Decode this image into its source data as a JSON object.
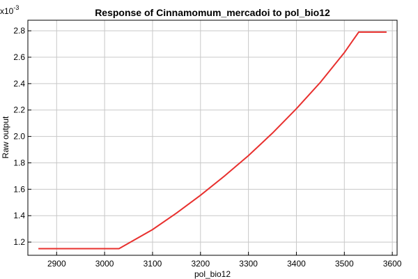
{
  "chart_data": {
    "type": "line",
    "title": "Response of Cinnamomum_mercadoi to pol_bio12",
    "xlabel": "pol_bio12",
    "ylabel": "Raw output",
    "y_multiplier_label": "x10",
    "y_multiplier_exponent": "-3",
    "xlim": [
      2840,
      3610
    ],
    "ylim": [
      1.1,
      2.88
    ],
    "x_ticks": [
      2900,
      3000,
      3100,
      3200,
      3300,
      3400,
      3500,
      3600
    ],
    "y_ticks": [
      1.2,
      1.4,
      1.6,
      1.8,
      2.0,
      2.2,
      2.4,
      2.6,
      2.8
    ],
    "y_tick_labels": [
      "1.2",
      "1.4",
      "1.6",
      "1.8",
      "2.0",
      "2.2",
      "2.4",
      "2.6",
      "2.8"
    ],
    "grid": true,
    "line_color": "#e8302e",
    "series": [
      {
        "x": [
          2862,
          3030,
          3100,
          3150,
          3200,
          3250,
          3300,
          3350,
          3400,
          3450,
          3500,
          3530,
          3588
        ],
        "values": [
          1.15,
          1.15,
          1.295,
          1.42,
          1.555,
          1.7,
          1.855,
          2.025,
          2.21,
          2.41,
          2.635,
          2.79,
          2.79
        ]
      }
    ]
  }
}
